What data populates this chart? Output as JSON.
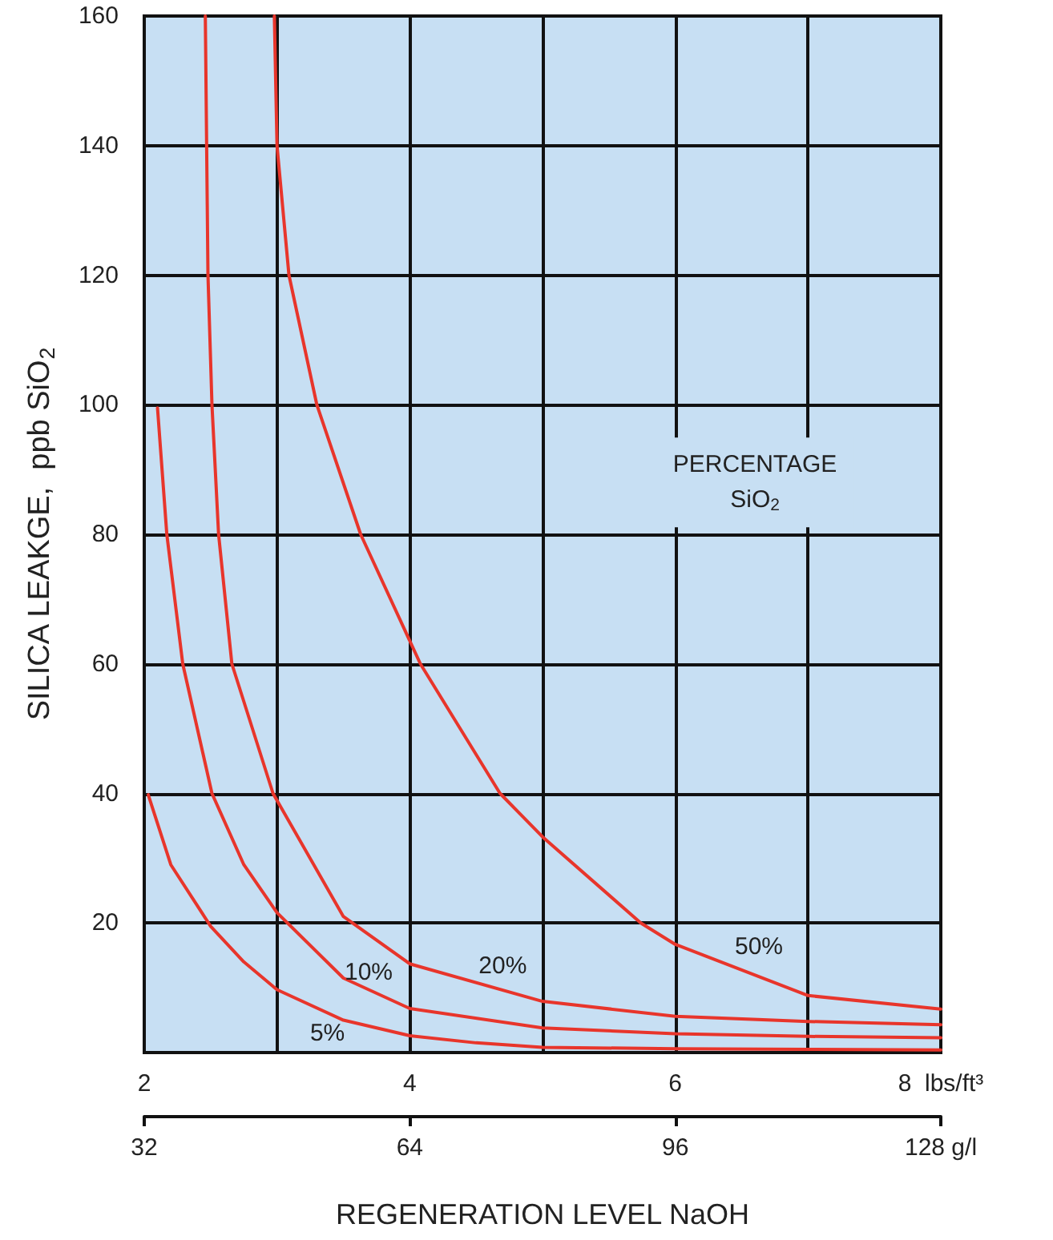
{
  "chart_data": {
    "type": "line",
    "xlabel": "REGENERATION LEVEL NaOH",
    "ylabel": "SILICA LEAKGE,  ppb SiO$_{2}$",
    "legend_title": "PERCENTAGE\nSiO$_{2}$",
    "xlim": [
      2,
      8
    ],
    "xticks": [
      2,
      {
        "value": 3,
        "label": null
      },
      4,
      {
        "value": 5,
        "label": null
      },
      6,
      {
        "value": 7,
        "label": null
      },
      {
        "value": 8,
        "label": "8  lbs/ft³"
      }
    ],
    "x2lim": [
      32,
      128
    ],
    "x2ticks": [
      32,
      64,
      96,
      {
        "value": 128,
        "label": "128 g/l"
      }
    ],
    "ylim": [
      0,
      160
    ],
    "yticks": [
      {
        "value": 0,
        "label": null
      },
      20,
      40,
      60,
      80,
      100,
      120,
      140,
      160
    ],
    "grid": true,
    "marker": "none",
    "line_style": "solid",
    "legend": false,
    "series": [
      {
        "name": "5%",
        "color": "#e8352b",
        "x": [
          2.03,
          2.2,
          2.5,
          2.75,
          3,
          3.5,
          4,
          4.5,
          5,
          6,
          7,
          8
        ],
        "values": [
          39.8,
          29,
          19.5,
          14,
          9.7,
          5,
          2.6,
          1.5,
          0.8,
          0.6,
          0.5,
          0.4
        ]
      },
      {
        "name": "10%",
        "color": "#e8352b",
        "x": [
          2.1,
          2.17,
          2.29,
          2.51,
          2.75,
          3,
          3.5,
          4,
          5,
          6,
          7,
          8
        ],
        "values": [
          99.5,
          80,
          60,
          40,
          29,
          21.6,
          11.5,
          6.8,
          3.8,
          2.9,
          2.5,
          2.3
        ]
      },
      {
        "name": "20%",
        "color": "#e8352b",
        "x": [
          2.46,
          2.48,
          2.51,
          2.56,
          2.66,
          2.97,
          3.5,
          4,
          5,
          6,
          7,
          8
        ],
        "values": [
          160,
          120,
          100,
          80,
          60,
          40,
          21,
          13.7,
          7.9,
          5.6,
          4.8,
          4.3
        ]
      },
      {
        "name": "50%",
        "color": "#e8352b",
        "x": [
          2.98,
          3,
          3.09,
          3.3,
          3.63,
          4.08,
          4.68,
          5,
          5.74,
          6,
          7,
          8
        ],
        "values": [
          160,
          140,
          120,
          100,
          80,
          60,
          40,
          33.3,
          20,
          16.7,
          8.8,
          6.7
        ]
      }
    ]
  }
}
